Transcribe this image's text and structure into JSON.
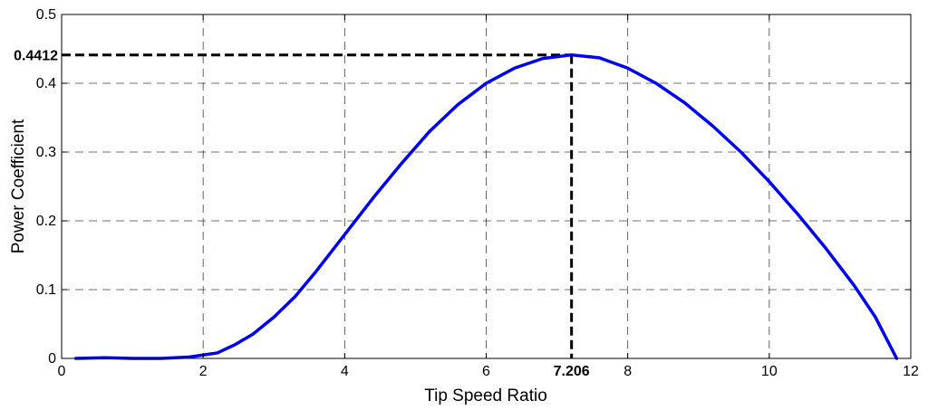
{
  "chart_data": {
    "type": "line",
    "title": "",
    "xlabel": "Tip Speed Ratio",
    "ylabel": "Power Coefficient",
    "xlim": [
      0,
      12
    ],
    "ylim": [
      0,
      0.5
    ],
    "xticks": [
      0,
      2,
      4,
      6,
      8,
      10,
      12
    ],
    "yticks": [
      0,
      0.1,
      0.2,
      0.3,
      0.4,
      0.5
    ],
    "xtick_labels": [
      "0",
      "2",
      "4",
      "6",
      "8",
      "10",
      "12"
    ],
    "ytick_labels": [
      "0",
      "0.1",
      "0.2",
      "0.3",
      "0.4",
      "0.5"
    ],
    "grid": true,
    "series": [
      {
        "color": "#0000ee",
        "x": [
          0.2,
          0.6,
          1.0,
          1.4,
          1.8,
          2.2,
          2.45,
          2.7,
          3.0,
          3.3,
          3.6,
          4.0,
          4.4,
          4.8,
          5.2,
          5.6,
          6.0,
          6.4,
          6.8,
          7.206,
          7.6,
          8.0,
          8.4,
          8.8,
          9.2,
          9.6,
          10.0,
          10.4,
          10.8,
          11.2,
          11.5,
          11.8
        ],
        "y": [
          0.0,
          0.001,
          0.0,
          0.0,
          0.002,
          0.008,
          0.02,
          0.035,
          0.06,
          0.09,
          0.127,
          0.18,
          0.233,
          0.283,
          0.33,
          0.369,
          0.4,
          0.422,
          0.436,
          0.4412,
          0.437,
          0.422,
          0.4,
          0.372,
          0.338,
          0.3,
          0.257,
          0.21,
          0.16,
          0.106,
          0.06,
          0.0
        ]
      }
    ],
    "annotations": {
      "peak_x": 7.206,
      "peak_y": 0.4412,
      "peak_x_label": "7.206",
      "peak_y_label": "0.4412"
    }
  }
}
